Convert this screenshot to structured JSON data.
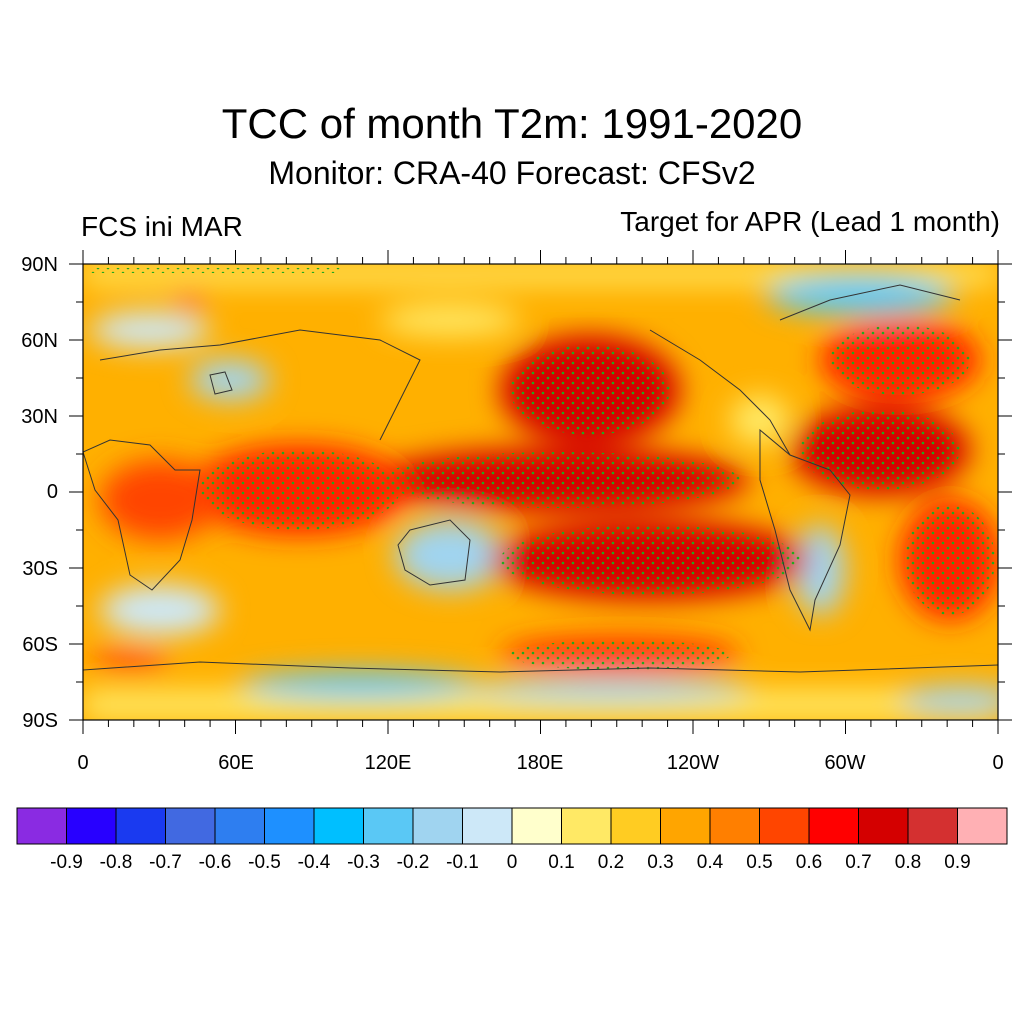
{
  "title": "TCC of month T2m: 1991-2020",
  "subtitle": "Monitor: CRA-40   Forecast: CFSv2",
  "left_string": "FCS ini MAR",
  "right_string": "Target for APR (Lead 1 month)",
  "lat_labels": [
    "90N",
    "60N",
    "30N",
    "0",
    "30S",
    "60S",
    "90S"
  ],
  "lon_labels": [
    "0",
    "60E",
    "120E",
    "180E",
    "120W",
    "60W",
    "0"
  ],
  "colorbar": {
    "colors": [
      "#8a2be2",
      "#2800ff",
      "#1a3af0",
      "#4169e1",
      "#2e7ef0",
      "#1e90ff",
      "#00bfff",
      "#5ac8f5",
      "#a0d4f0",
      "#cde8f8",
      "#ffffcc",
      "#ffe965",
      "#ffcc22",
      "#ffa500",
      "#ff7f00",
      "#ff4500",
      "#ff0000",
      "#d40000",
      "#d43030",
      "#ffb0b4"
    ],
    "labels": [
      "-0.9",
      "-0.8",
      "-0.7",
      "-0.6",
      "-0.5",
      "-0.4",
      "-0.3",
      "-0.2",
      "-0.1",
      "0",
      "0.1",
      "0.2",
      "0.3",
      "0.4",
      "0.5",
      "0.6",
      "0.7",
      "0.8",
      "0.9"
    ]
  },
  "stipple_color": "#1faa1f"
}
